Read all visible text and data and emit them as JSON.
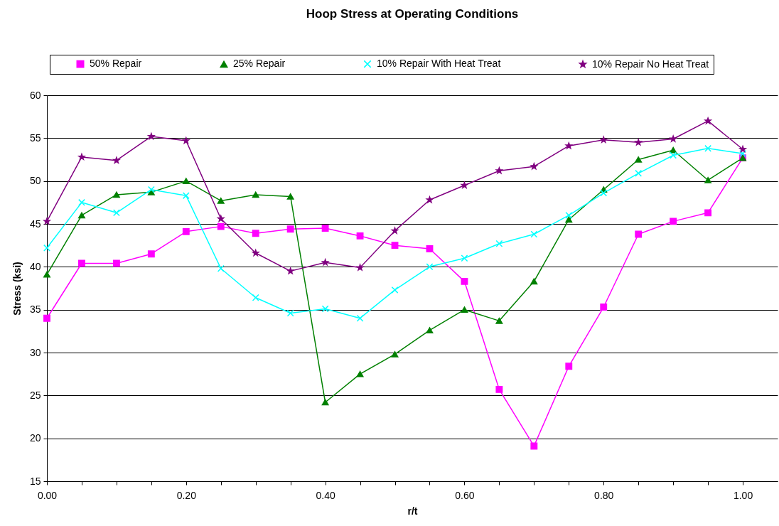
{
  "chart_data": {
    "type": "line",
    "title": "Hoop Stress at Operating Conditions",
    "xlabel": "r/t",
    "ylabel": "Stress (ksi)",
    "x": [
      0,
      0.05,
      0.1,
      0.15,
      0.2,
      0.25,
      0.3,
      0.35,
      0.4,
      0.45,
      0.5,
      0.55,
      0.6,
      0.65,
      0.7,
      0.75,
      0.8,
      0.85,
      0.9,
      0.95,
      1.0
    ],
    "series": [
      {
        "name": "50% Repair",
        "color": "#ff00ff",
        "marker": "square",
        "values": [
          34.0,
          40.4,
          40.4,
          41.5,
          44.1,
          44.7,
          43.9,
          44.4,
          44.5,
          43.6,
          42.5,
          42.1,
          38.3,
          25.7,
          19.1,
          28.4,
          35.3,
          43.8,
          45.3,
          46.3,
          52.7
        ]
      },
      {
        "name": "25% Repair",
        "color": "#008000",
        "marker": "triangle",
        "values": [
          39.1,
          46.0,
          48.4,
          48.7,
          50.0,
          47.7,
          48.4,
          48.2,
          24.2,
          27.5,
          29.8,
          32.6,
          35.0,
          33.7,
          38.3,
          45.5,
          49.0,
          52.5,
          53.6,
          50.1,
          52.7
        ]
      },
      {
        "name": "10% Repair With Heat Treat",
        "color": "#00ffff",
        "marker": "cross",
        "values": [
          42.2,
          47.5,
          46.3,
          49.0,
          48.3,
          39.8,
          36.4,
          34.6,
          35.1,
          34.0,
          37.3,
          40.0,
          41.0,
          42.7,
          43.8,
          46.0,
          48.6,
          50.9,
          53.0,
          53.8,
          53.2
        ]
      },
      {
        "name": "10% Repair No Heat Treat",
        "color": "#800080",
        "marker": "star",
        "values": [
          45.3,
          52.8,
          52.4,
          55.2,
          54.7,
          45.6,
          41.6,
          39.5,
          40.5,
          39.9,
          44.2,
          47.8,
          49.5,
          51.2,
          51.7,
          54.1,
          54.8,
          54.5,
          54.9,
          57.0,
          53.7
        ]
      }
    ],
    "xlim": [
      0,
      1.05
    ],
    "xticks": [
      {
        "value": 0,
        "label": "0.00"
      },
      {
        "value": 0.05,
        "label": null
      },
      {
        "value": 0.1,
        "label": null
      },
      {
        "value": 0.15,
        "label": null
      },
      {
        "value": 0.2,
        "label": "0.20"
      },
      {
        "value": 0.25,
        "label": null
      },
      {
        "value": 0.3,
        "label": null
      },
      {
        "value": 0.35,
        "label": null
      },
      {
        "value": 0.4,
        "label": "0.40"
      },
      {
        "value": 0.45,
        "label": null
      },
      {
        "value": 0.5,
        "label": null
      },
      {
        "value": 0.55,
        "label": null
      },
      {
        "value": 0.6,
        "label": "0.60"
      },
      {
        "value": 0.65,
        "label": null
      },
      {
        "value": 0.7,
        "label": null
      },
      {
        "value": 0.75,
        "label": null
      },
      {
        "value": 0.8,
        "label": "0.80"
      },
      {
        "value": 0.85,
        "label": null
      },
      {
        "value": 0.9,
        "label": null
      },
      {
        "value": 0.95,
        "label": null
      },
      {
        "value": 1.0,
        "label": "1.00"
      }
    ],
    "ylim": [
      15,
      60
    ],
    "yticks": [
      15,
      20,
      25,
      30,
      35,
      40,
      45,
      50,
      55,
      60
    ],
    "grid": "y",
    "legend": "top",
    "line_style": "solid"
  }
}
